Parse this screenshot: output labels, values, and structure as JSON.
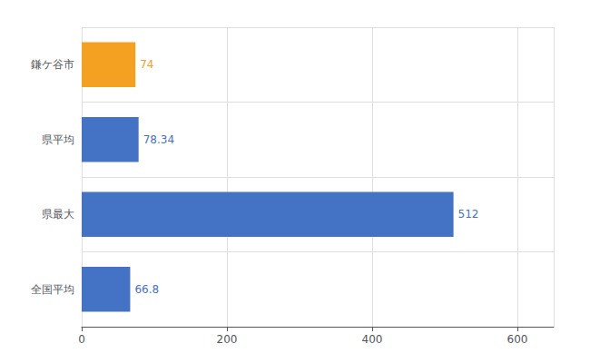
{
  "chart_data": {
    "type": "bar",
    "orientation": "horizontal",
    "categories": [
      "鎌ケ谷市",
      "県平均",
      "県最大",
      "全国平均"
    ],
    "values": [
      74,
      78.34,
      512,
      66.8
    ],
    "colors": [
      "#f4a020",
      "#4472c4",
      "#4472c4",
      "#4472c4"
    ],
    "xlim": [
      0,
      650
    ],
    "xticks": [
      0,
      200,
      400,
      600
    ],
    "grid": true,
    "data_labels": true
  }
}
